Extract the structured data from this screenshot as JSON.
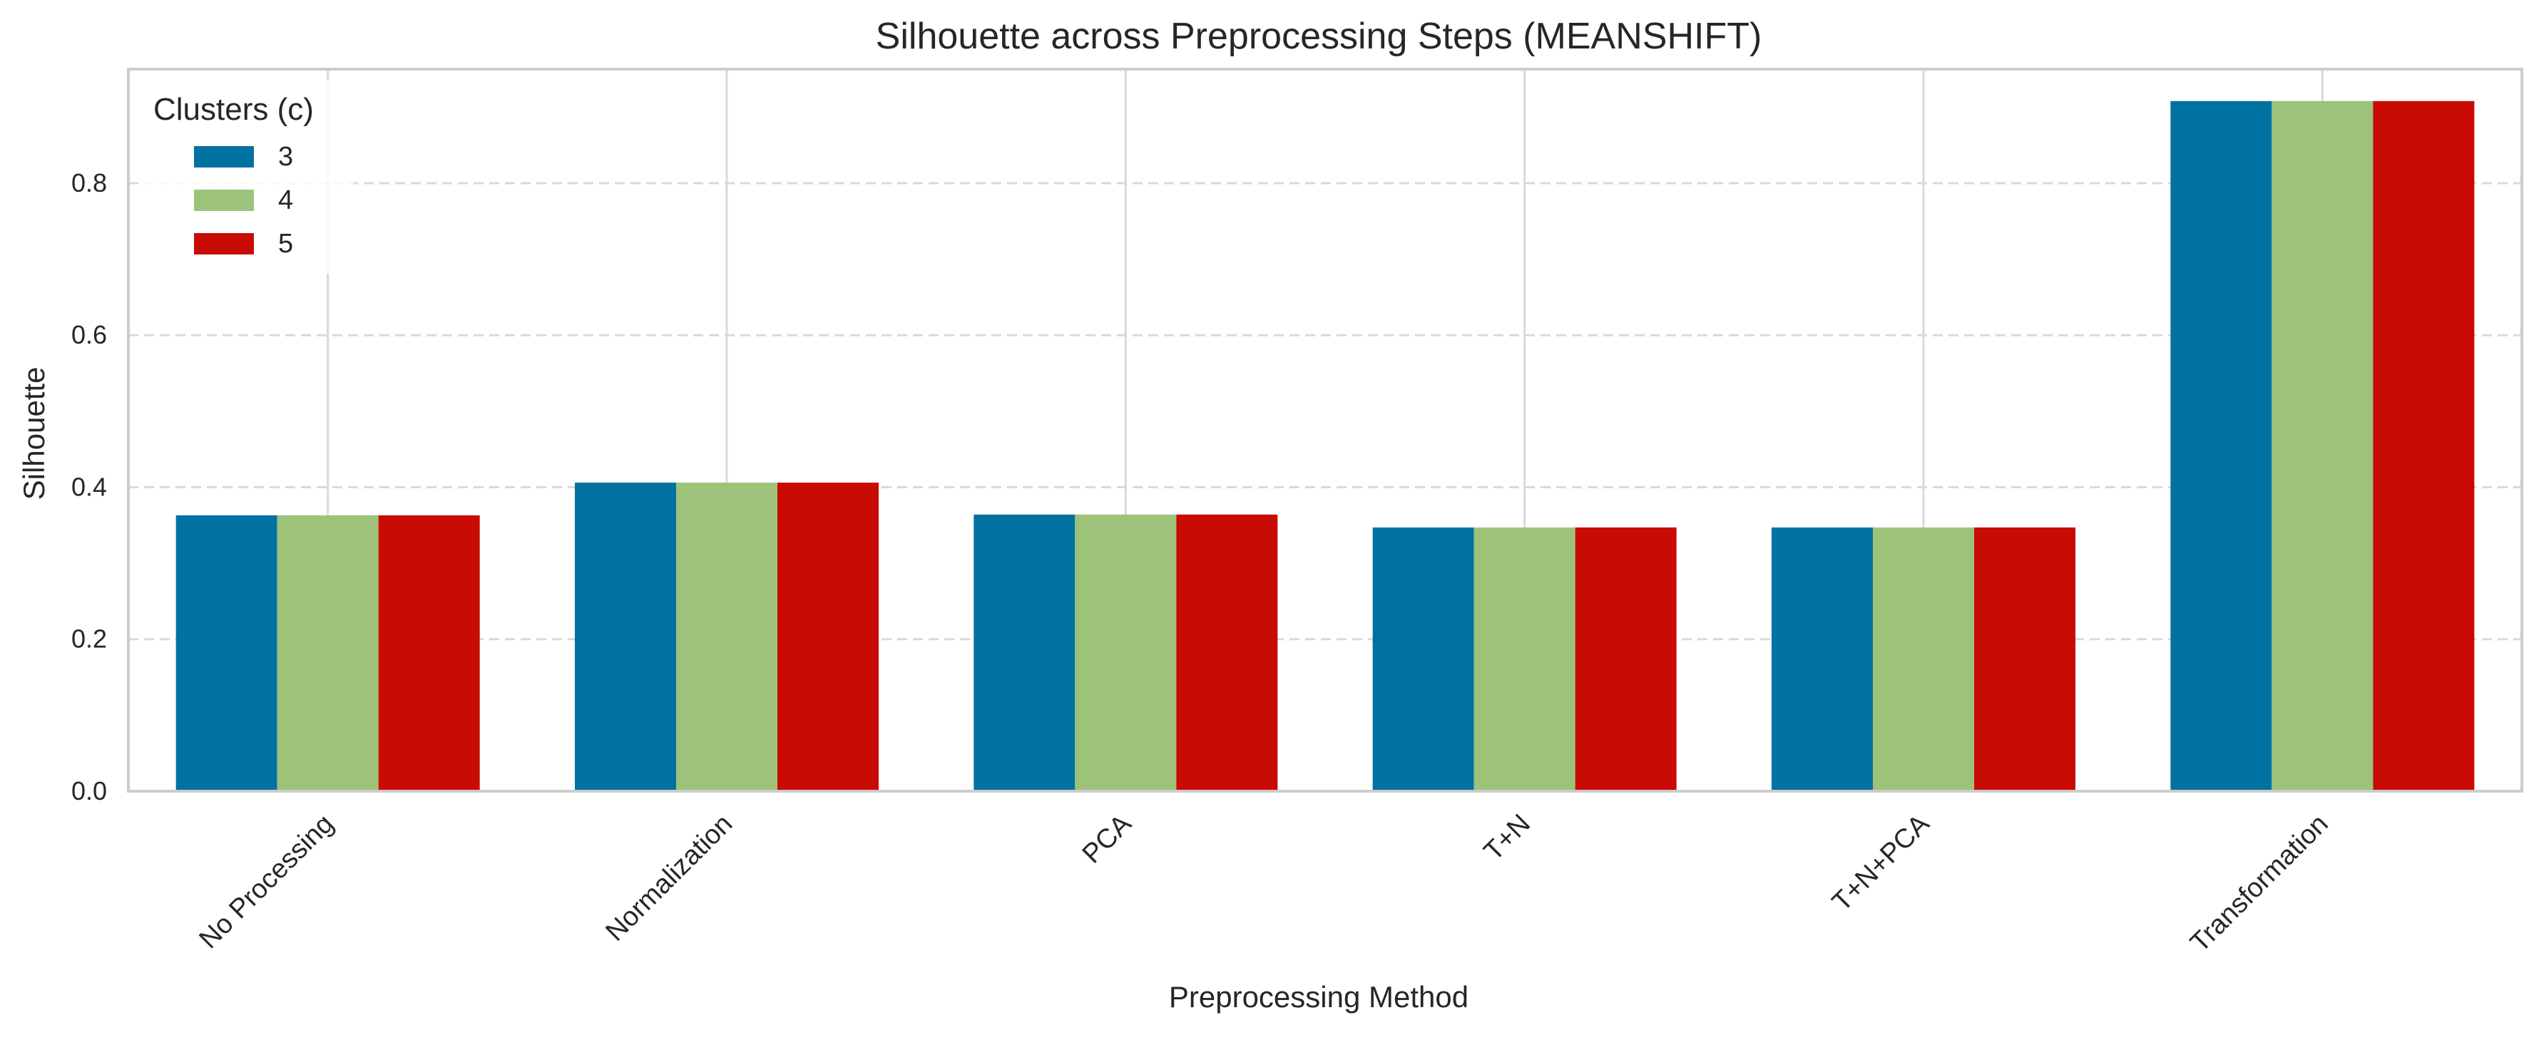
{
  "chart_data": {
    "type": "bar",
    "title": "Silhouette across Preprocessing Steps (MEANSHIFT)",
    "xlabel": "Preprocessing Method",
    "ylabel": "Silhouette",
    "categories": [
      "No Processing",
      "Normalization",
      "PCA",
      "T+N",
      "T+N+PCA",
      "Transformation"
    ],
    "series": [
      {
        "name": "3",
        "color": "#0072A2",
        "values": [
          0.363,
          0.406,
          0.364,
          0.347,
          0.347,
          0.908
        ]
      },
      {
        "name": "4",
        "color": "#9DC37A",
        "values": [
          0.363,
          0.406,
          0.364,
          0.347,
          0.347,
          0.908
        ]
      },
      {
        "name": "5",
        "color": "#C80C05",
        "values": [
          0.363,
          0.406,
          0.364,
          0.347,
          0.347,
          0.908
        ]
      }
    ],
    "ylim": [
      0,
      0.95
    ],
    "yticks": [
      0.0,
      0.2,
      0.4,
      0.6,
      0.8
    ],
    "ytick_labels": [
      "0.0",
      "0.2",
      "0.4",
      "0.6",
      "0.8"
    ],
    "legend": {
      "title": "Clusters (c)",
      "placement": "top-left"
    },
    "grid": {
      "y": "dashed",
      "x": "solid"
    },
    "colors": {
      "grid": "#D9D9D9",
      "axes": "#CCCCCC",
      "text": "#262626"
    }
  }
}
